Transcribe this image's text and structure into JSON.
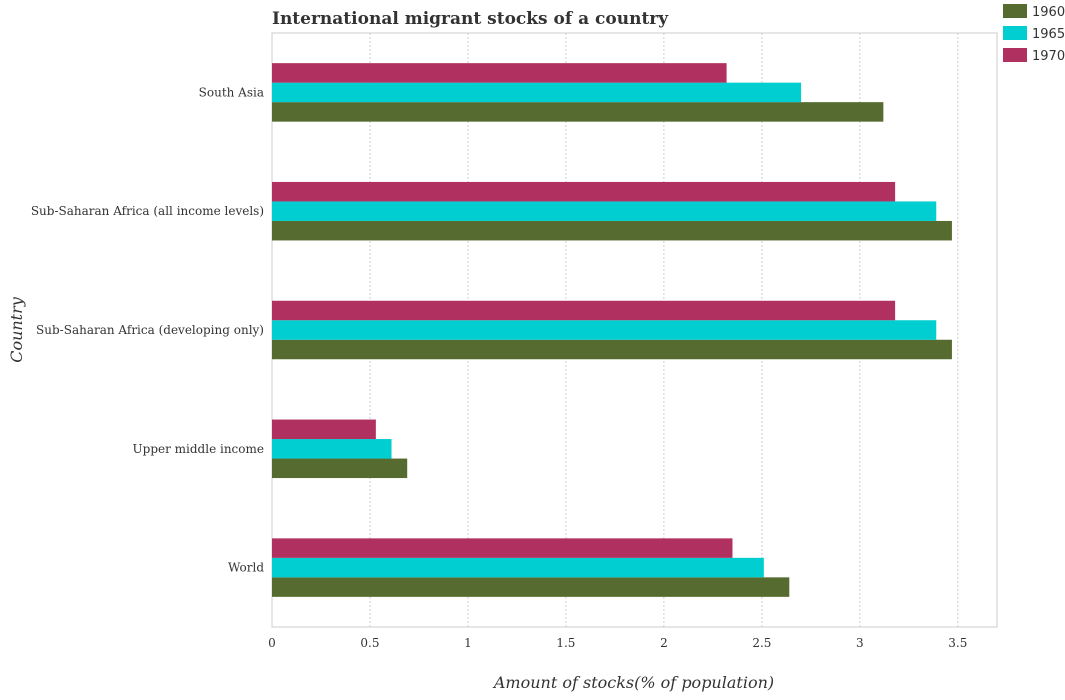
{
  "chart_data": {
    "type": "bar",
    "orientation": "horizontal",
    "title": "International migrant stocks of a country",
    "xlabel": "Amount of stocks(% of population)",
    "ylabel": "Country",
    "xlim": [
      0,
      3.7
    ],
    "xticks": [
      "0",
      "0.5",
      "1",
      "1.5",
      "2",
      "2.5",
      "3",
      "3.5"
    ],
    "grid": "vertical dashed",
    "legend_placement": "top-right",
    "categories": [
      "South Asia",
      "Sub-Saharan Africa (all income levels)",
      "Sub-Saharan Africa (developing only)",
      "Upper middle income",
      "World"
    ],
    "series": [
      {
        "name": "1960",
        "color": "#556b2f",
        "values": [
          3.12,
          3.47,
          3.47,
          0.69,
          2.64
        ]
      },
      {
        "name": "1965",
        "color": "#00ced1",
        "values": [
          2.7,
          3.39,
          3.39,
          0.61,
          2.51
        ]
      },
      {
        "name": "1970",
        "color": "#b03060",
        "values": [
          2.32,
          3.18,
          3.18,
          0.53,
          2.35
        ]
      }
    ]
  }
}
